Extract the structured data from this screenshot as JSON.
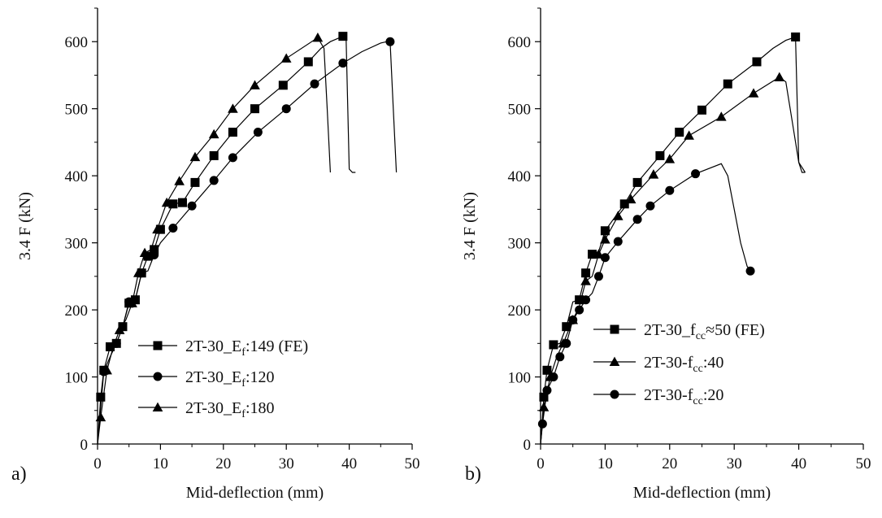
{
  "chart_data": [
    {
      "type": "line",
      "panel_label": "a)",
      "xlabel": "Mid-deflection (mm)",
      "ylabel": "3.4 F (kN)",
      "xlim": [
        0,
        50
      ],
      "ylim": [
        0,
        650
      ],
      "xticks": [
        0,
        10,
        20,
        30,
        40,
        50
      ],
      "yticks": [
        0,
        100,
        200,
        300,
        400,
        500,
        600
      ],
      "legend_position": "bottom-right",
      "series": [
        {
          "name": "2T-30_Ef:149 (FE)",
          "name_main": "2T-30_E",
          "name_sub": "f",
          "name_rest": ":149 (FE)",
          "marker": "square",
          "x": [
            0,
            0.5,
            1,
            2,
            3,
            4,
            5,
            6,
            7,
            8,
            9,
            10,
            12,
            13.5,
            15.5,
            18.5,
            21.5,
            25,
            29.5,
            33.5,
            35.5,
            37,
            39,
            39.5,
            40,
            40.5,
            41
          ],
          "y": [
            0,
            70,
            110,
            145,
            150,
            175,
            210,
            215,
            255,
            280,
            290,
            320,
            358,
            360,
            390,
            430,
            465,
            500,
            535,
            570,
            590,
            600,
            608,
            608,
            410,
            405,
            405
          ],
          "markers_x": [
            0.5,
            1,
            2,
            3,
            4,
            5,
            6,
            7,
            8,
            9,
            10,
            12,
            13.5,
            15.5,
            18.5,
            21.5,
            25,
            29.5,
            33.5,
            39
          ]
        },
        {
          "name": "2T-30_Ef:120",
          "name_main": "2T-30_E",
          "name_sub": "f",
          "name_rest": ":120",
          "marker": "circle",
          "x": [
            0,
            1,
            2,
            3,
            4,
            5,
            6,
            7,
            8,
            9,
            10,
            12,
            15,
            18.5,
            21.5,
            25.5,
            30,
            34.5,
            39,
            42,
            45,
            46,
            46.5,
            47,
            47.5
          ],
          "y": [
            0,
            108,
            130,
            150,
            175,
            212,
            215,
            255,
            258,
            282,
            300,
            322,
            355,
            393,
            427,
            465,
            500,
            537,
            568,
            585,
            598,
            600,
            600,
            500,
            405
          ],
          "markers_x": [
            1,
            3,
            5,
            7,
            9,
            12,
            15,
            18.5,
            21.5,
            25.5,
            30,
            34.5,
            39,
            46.5
          ]
        },
        {
          "name": "2T-30_Ef:180",
          "name_main": "2T-30_E",
          "name_sub": "f",
          "name_rest": ":180",
          "marker": "triangle",
          "x": [
            0,
            0.5,
            1.5,
            2.5,
            3.5,
            4.5,
            5.5,
            6.5,
            7.5,
            8.5,
            9.5,
            11,
            13,
            15.5,
            18.5,
            21.5,
            25,
            30,
            35,
            36,
            36.5,
            37
          ],
          "y": [
            0,
            40,
            110,
            145,
            170,
            185,
            210,
            255,
            285,
            290,
            320,
            360,
            392,
            428,
            462,
            500,
            535,
            575,
            606,
            590,
            500,
            405
          ],
          "markers_x": [
            0.5,
            1.5,
            3.5,
            5.5,
            6.5,
            7.5,
            9.5,
            11,
            13,
            15.5,
            18.5,
            21.5,
            25,
            30,
            35
          ]
        }
      ]
    },
    {
      "type": "line",
      "panel_label": "b)",
      "xlabel": "Mid-deflection (mm)",
      "ylabel": "3.4 F (kN)",
      "xlim": [
        0,
        50
      ],
      "ylim": [
        0,
        650
      ],
      "xticks": [
        0,
        10,
        20,
        30,
        40,
        50
      ],
      "yticks": [
        0,
        100,
        200,
        300,
        400,
        500,
        600
      ],
      "legend_position": "bottom-right",
      "series": [
        {
          "name": "2T-30_fcc≈50 (FE)",
          "name_main": "2T-30_f",
          "name_sub": "cc",
          "name_rest": "≈50 (FE)",
          "marker": "square",
          "x": [
            0,
            0.5,
            1,
            2,
            3,
            4,
            5,
            6,
            7,
            8,
            9,
            10,
            13,
            15,
            18.5,
            21.5,
            25,
            29,
            33.5,
            36,
            38,
            39.5,
            40,
            40.5,
            41
          ],
          "y": [
            0,
            70,
            110,
            148,
            150,
            175,
            212,
            215,
            255,
            283,
            287,
            318,
            358,
            390,
            430,
            465,
            498,
            537,
            570,
            590,
            602,
            607,
            420,
            405,
            405
          ],
          "markers_x": [
            0.5,
            1,
            2,
            4,
            6,
            7,
            8,
            10,
            13,
            15,
            18.5,
            21.5,
            25,
            29,
            33.5,
            39.5
          ]
        },
        {
          "name": "2T-30-fcc:40",
          "name_main": "2T-30-f",
          "name_sub": "cc",
          "name_rest": ":40",
          "marker": "triangle",
          "x": [
            0,
            0.5,
            1.5,
            2.5,
            3.5,
            5,
            6,
            7,
            8,
            9,
            10,
            12,
            14,
            17.5,
            20,
            23,
            28,
            33,
            37,
            38,
            39,
            40,
            41
          ],
          "y": [
            0,
            55,
            100,
            130,
            150,
            185,
            205,
            243,
            250,
            283,
            305,
            340,
            365,
            402,
            425,
            460,
            488,
            523,
            547,
            540,
            480,
            420,
            405
          ],
          "markers_x": [
            0.5,
            1.5,
            3.5,
            5,
            7,
            9,
            10,
            12,
            14,
            17.5,
            20,
            23,
            28,
            33,
            37
          ]
        },
        {
          "name": "2T-30-fcc:20",
          "name_main": "2T-30-f",
          "name_sub": "cc",
          "name_rest": ":20",
          "marker": "circle",
          "x": [
            0,
            0.3,
            1,
            2,
            3,
            4,
            5,
            6,
            7,
            8,
            9,
            10,
            12,
            15,
            17,
            20,
            24,
            28,
            29,
            30,
            31,
            32,
            32.5
          ],
          "y": [
            0,
            30,
            80,
            100,
            130,
            150,
            185,
            200,
            215,
            225,
            250,
            278,
            302,
            335,
            355,
            378,
            403,
            418,
            400,
            350,
            300,
            265,
            258
          ],
          "markers_x": [
            0.3,
            1,
            2,
            3,
            4,
            5,
            6,
            7,
            9,
            10,
            12,
            15,
            17,
            20,
            24,
            32.5
          ]
        }
      ]
    }
  ]
}
